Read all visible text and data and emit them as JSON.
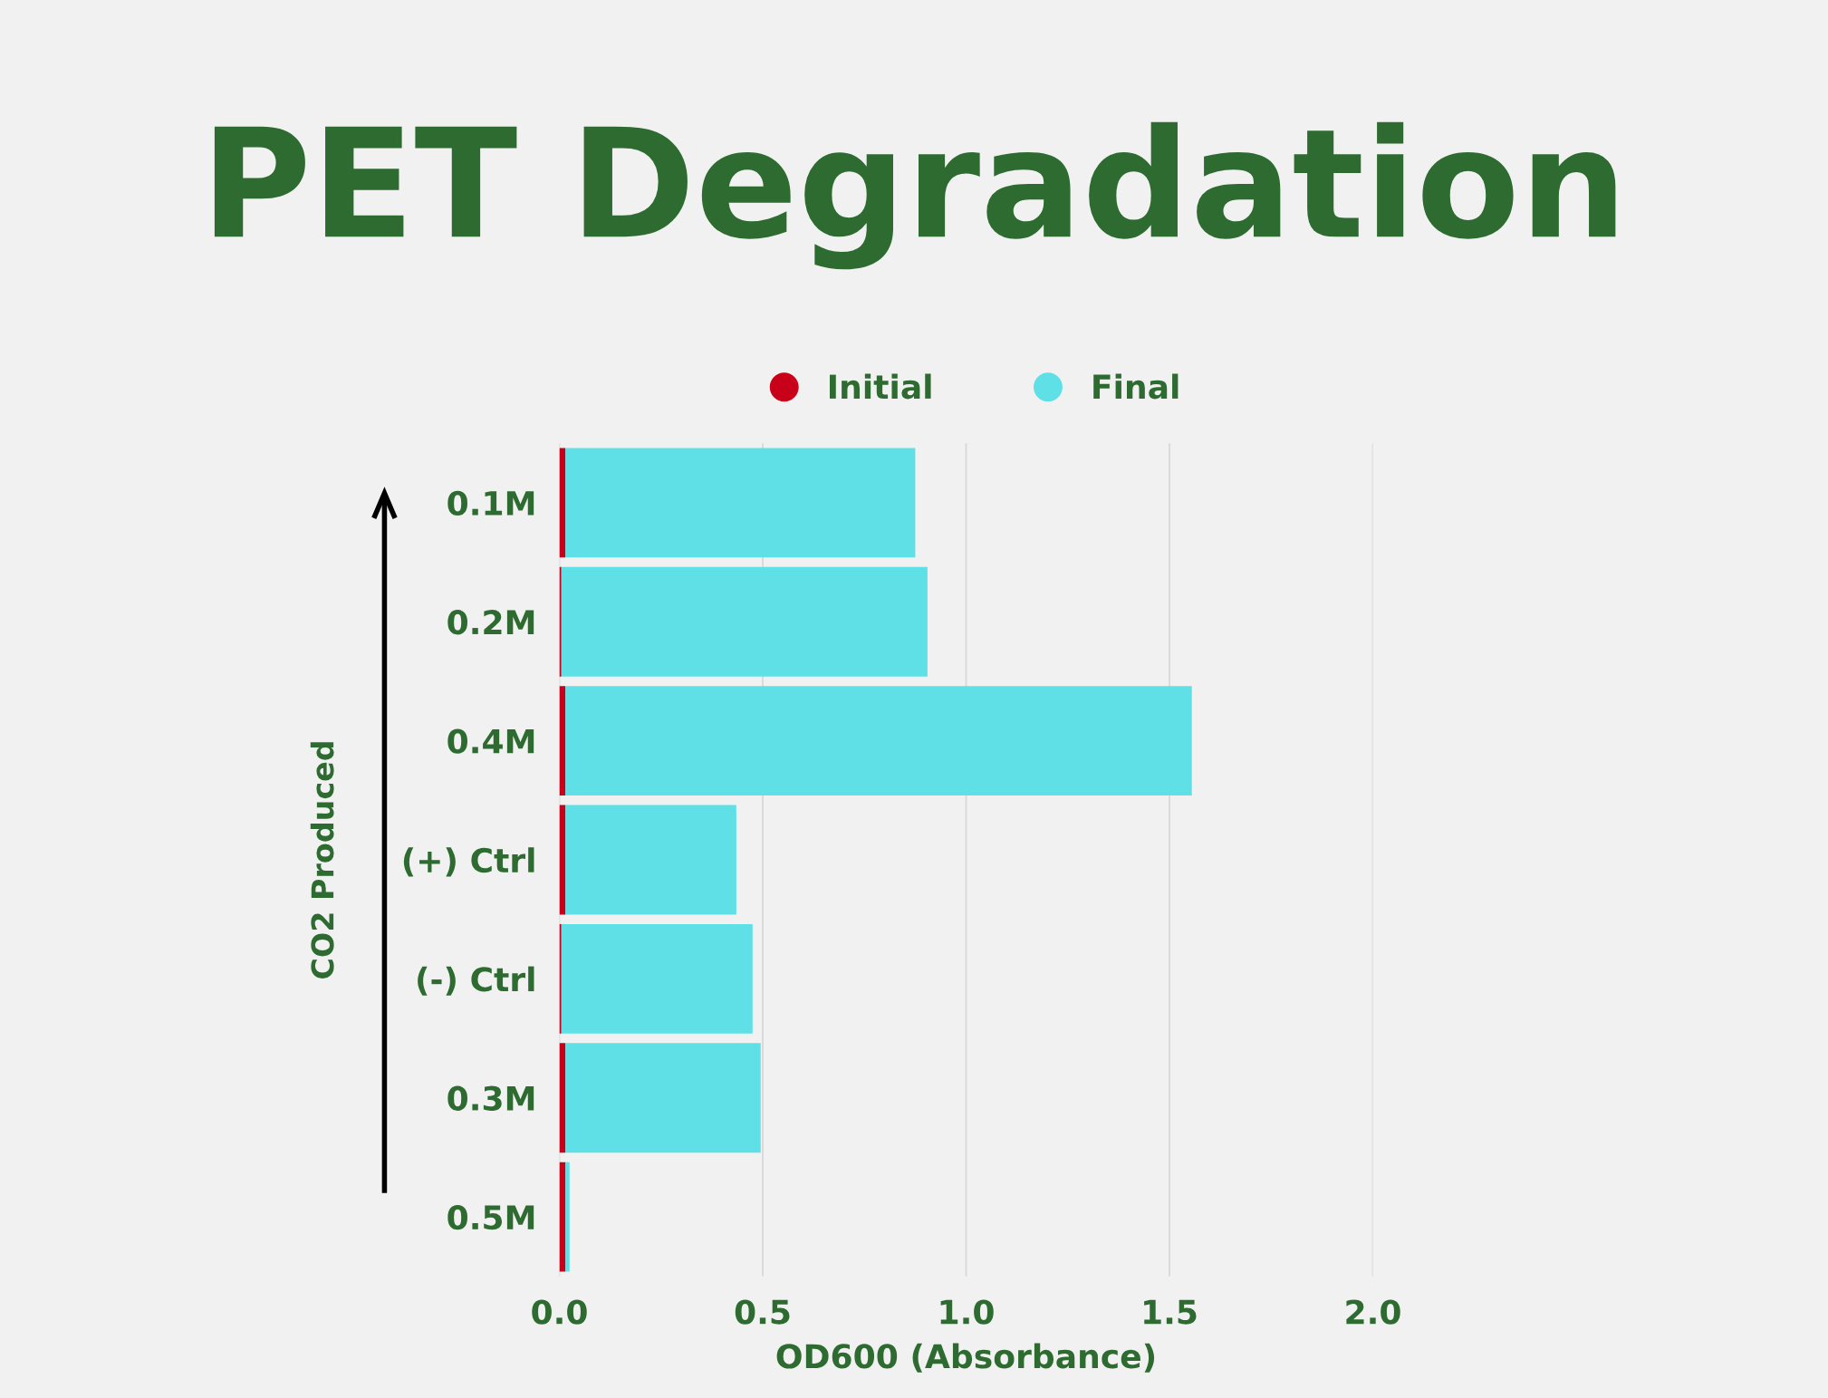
{
  "chart_data": {
    "type": "bar",
    "title": "PET Degradation",
    "orientation": "horizontal",
    "stacked": true,
    "categories": [
      "0.1M",
      "0.2M",
      "0.4M",
      "(+) Ctrl",
      "(-) Ctrl",
      "0.3M",
      "0.5M"
    ],
    "series": [
      {
        "name": "Initial",
        "color": "#c8001a",
        "values": [
          0.015,
          0.005,
          0.015,
          0.015,
          0.005,
          0.015,
          0.015
        ]
      },
      {
        "name": "Final",
        "color": "#5ee0e6",
        "values": [
          0.86,
          0.9,
          1.54,
          0.42,
          0.47,
          0.48,
          0.01
        ]
      }
    ],
    "xlabel": "OD600 (Absorbance)",
    "ylabel": "CO2 Produced",
    "xlim": [
      0,
      2.0
    ],
    "xticks": [
      {
        "value": 0,
        "label": "0.0"
      },
      0.5,
      {
        "value": 1,
        "label": "1.0"
      },
      1.5,
      {
        "value": 2,
        "label": "2.0"
      }
    ],
    "grid": "x",
    "legend": "top"
  }
}
